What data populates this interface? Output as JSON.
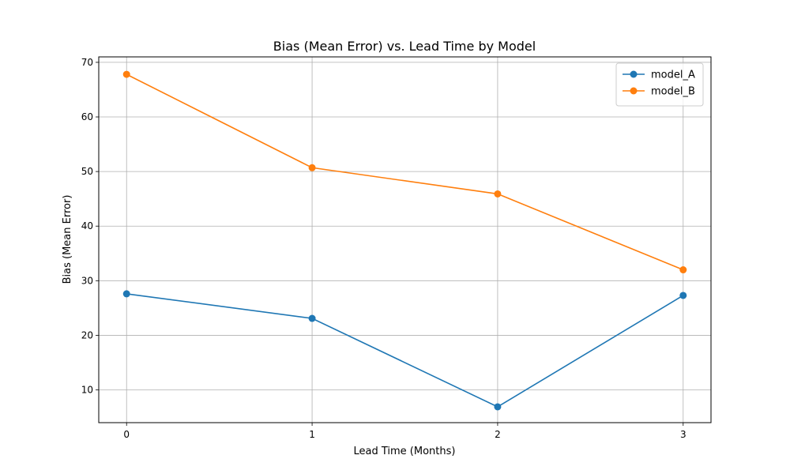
{
  "chart_data": {
    "type": "line",
    "title": "Bias (Mean Error) vs. Lead Time by Model",
    "xlabel": "Lead Time (Months)",
    "ylabel": "Bias (Mean Error)",
    "x": [
      0,
      1,
      2,
      3
    ],
    "xlim": [
      -0.15,
      3.15
    ],
    "ylim": [
      4,
      71
    ],
    "xticks": [
      0,
      1,
      2,
      3
    ],
    "yticks": [
      10,
      20,
      30,
      40,
      50,
      60,
      70
    ],
    "grid": true,
    "legend_position": "top-right",
    "series": [
      {
        "name": "model_A",
        "color": "#1f77b4",
        "values": [
          27.6,
          23.1,
          6.9,
          27.3
        ]
      },
      {
        "name": "model_B",
        "color": "#ff7f0e",
        "values": [
          67.8,
          50.7,
          45.9,
          32.0
        ]
      }
    ]
  }
}
